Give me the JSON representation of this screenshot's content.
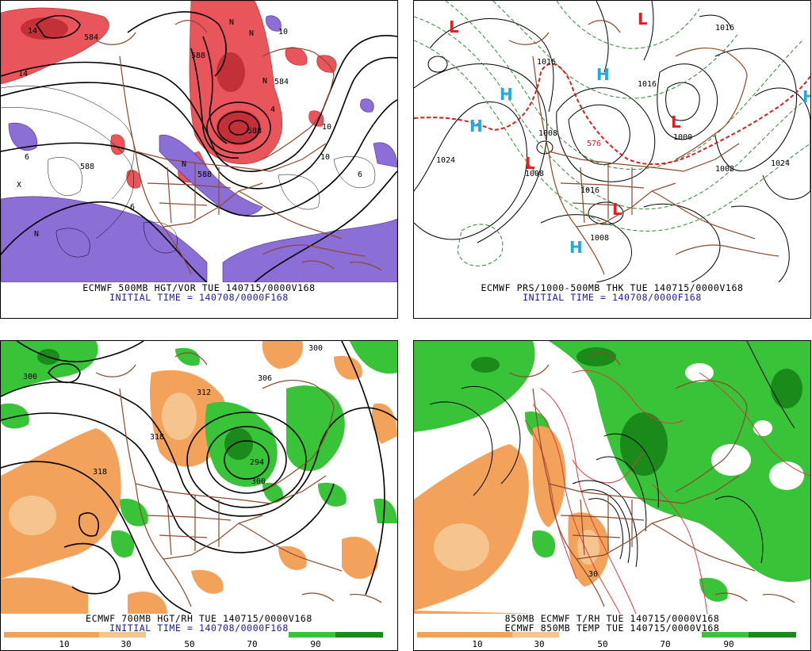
{
  "panels": [
    {
      "line1": "ECMWF 500MB HGT/VOR TUE 140715/0000V168",
      "line2": "INITIAL TIME = 140708/0000F168",
      "labels": [
        "584",
        "588",
        "588",
        "588",
        "584",
        "588",
        "14",
        "14",
        "10",
        "10",
        "6",
        "6",
        "6",
        "X",
        "N",
        "N",
        "N",
        "N",
        "N",
        "10",
        "4"
      ]
    },
    {
      "line1": "ECMWF PRS/1000-500MB THK TUE 140715/0000V168",
      "line2": "INITIAL TIME = 140708/0000F168",
      "labels": [
        "1024",
        "1024",
        "1016",
        "1016",
        "1008",
        "1008",
        "1000",
        "1008",
        "1016",
        "1008",
        "1016",
        "576"
      ],
      "centers": [
        "L",
        "L",
        "L",
        "L",
        "L",
        "H",
        "H",
        "H",
        "H",
        "H"
      ]
    },
    {
      "line1": "ECMWF 700MB HGT/RH TUE 140715/0000V168",
      "line2": "INITIAL TIME = 140708/0000F168",
      "labels": [
        "300",
        "300",
        "306",
        "312",
        "318",
        "318",
        "294",
        "300"
      ],
      "scale": [
        "10",
        "30",
        "50",
        "70",
        "90"
      ]
    },
    {
      "line1": "850MB ECMWF T/RH TUE 140715/0000V168",
      "line2": "ECMWF 850MB TEMP TUE 140715/0000V168",
      "labels": [
        "30"
      ],
      "scale": [
        "10",
        "30",
        "50",
        "70",
        "90"
      ]
    }
  ],
  "colors": {
    "vorticity_pos": "#e8555a",
    "vorticity_neg": "#8b6fd6",
    "rh_dry": "#f2a25a",
    "rh_moist": "#33bb33",
    "low_center": "#e02020",
    "high_center": "#22aadd",
    "border": "#8b4a2b",
    "scale_bar": [
      "#f2a25a",
      "#f2a25a",
      "#f5c48f",
      "#ffffff",
      "#ffffff",
      "#ffffff",
      "#39c339",
      "#1a8a1a"
    ]
  }
}
